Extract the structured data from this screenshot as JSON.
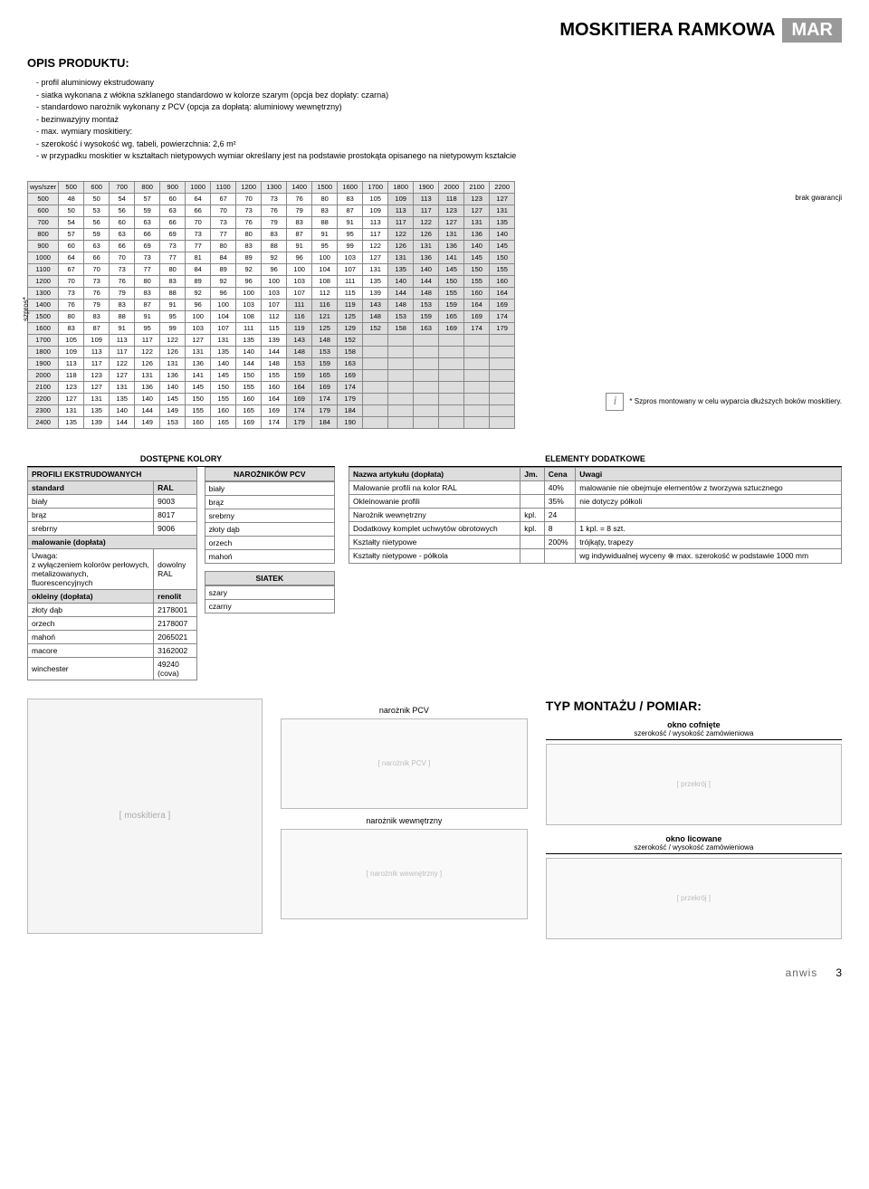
{
  "header": {
    "title": "MOSKITIERA RAMKOWA",
    "badge": "MAR"
  },
  "opis": {
    "title": "OPIS PRODUKTU:",
    "lines": [
      "- profil aluminiowy ekstrudowany",
      "- siatka wykonana z włókna szklanego standardowo w kolorze szarym (opcja bez dopłaty: czarna)",
      "- standardowo narożnik wykonany z PCV (opcja za dopłatą: aluminiowy wewnętrzny)",
      "- bezinwazyjny montaż",
      "- max. wymiary moskitiery:",
      "  - szerokość i wysokość wg. tabeli, powierzchnia: 2,6 m²",
      "- w przypadku moskitier w kształtach nietypowych wymiar określany jest na podstawie prostokąta opisanego na nietypowym kształcie"
    ]
  },
  "price": {
    "row_header": "wys/szer",
    "cols": [
      "500",
      "600",
      "700",
      "800",
      "900",
      "1000",
      "1100",
      "1200",
      "1300",
      "1400",
      "1500",
      "1600",
      "1700",
      "1800",
      "1900",
      "2000",
      "2100",
      "2200"
    ],
    "rows_h": [
      "500",
      "600",
      "700",
      "800",
      "900",
      "1000",
      "1100",
      "1200",
      "1300",
      "1400",
      "1500",
      "1600",
      "1700",
      "1800",
      "1900",
      "2000",
      "2100",
      "2200",
      "2300",
      "2400"
    ],
    "data": [
      [
        48,
        50,
        54,
        57,
        60,
        64,
        67,
        70,
        73,
        76,
        80,
        83,
        105,
        109,
        113,
        118,
        123,
        127
      ],
      [
        50,
        53,
        56,
        59,
        63,
        66,
        70,
        73,
        76,
        79,
        83,
        87,
        109,
        113,
        117,
        123,
        127,
        131
      ],
      [
        54,
        56,
        60,
        63,
        66,
        70,
        73,
        76,
        79,
        83,
        88,
        91,
        113,
        117,
        122,
        127,
        131,
        135
      ],
      [
        57,
        59,
        63,
        66,
        69,
        73,
        77,
        80,
        83,
        87,
        91,
        95,
        117,
        122,
        126,
        131,
        136,
        140
      ],
      [
        60,
        63,
        66,
        69,
        73,
        77,
        80,
        83,
        88,
        91,
        95,
        99,
        122,
        126,
        131,
        136,
        140,
        145
      ],
      [
        64,
        66,
        70,
        73,
        77,
        81,
        84,
        89,
        92,
        96,
        100,
        103,
        127,
        131,
        136,
        141,
        145,
        150
      ],
      [
        67,
        70,
        73,
        77,
        80,
        84,
        89,
        92,
        96,
        100,
        104,
        107,
        131,
        135,
        140,
        145,
        150,
        155
      ],
      [
        70,
        73,
        76,
        80,
        83,
        89,
        92,
        96,
        100,
        103,
        108,
        111,
        135,
        140,
        144,
        150,
        155,
        160
      ],
      [
        73,
        76,
        79,
        83,
        88,
        92,
        96,
        100,
        103,
        107,
        112,
        115,
        139,
        144,
        148,
        155,
        160,
        164
      ],
      [
        76,
        79,
        83,
        87,
        91,
        96,
        100,
        103,
        107,
        111,
        116,
        119,
        143,
        148,
        153,
        159,
        164,
        169
      ],
      [
        80,
        83,
        88,
        91,
        95,
        100,
        104,
        108,
        112,
        116,
        121,
        125,
        148,
        153,
        159,
        165,
        169,
        174
      ],
      [
        83,
        87,
        91,
        95,
        99,
        103,
        107,
        111,
        115,
        119,
        125,
        129,
        152,
        158,
        163,
        169,
        174,
        179
      ],
      [
        105,
        109,
        113,
        117,
        122,
        127,
        131,
        135,
        139,
        143,
        148,
        152,
        "",
        "",
        "",
        "",
        "",
        ""
      ],
      [
        109,
        113,
        117,
        122,
        126,
        131,
        135,
        140,
        144,
        148,
        153,
        158,
        "",
        "",
        "",
        "",
        "",
        ""
      ],
      [
        113,
        117,
        122,
        126,
        131,
        136,
        140,
        144,
        148,
        153,
        159,
        163,
        "",
        "",
        "",
        "",
        "",
        ""
      ],
      [
        118,
        123,
        127,
        131,
        136,
        141,
        145,
        150,
        155,
        159,
        165,
        169,
        "",
        "",
        "",
        "",
        "",
        ""
      ],
      [
        123,
        127,
        131,
        136,
        140,
        145,
        150,
        155,
        160,
        164,
        169,
        174,
        "",
        "",
        "",
        "",
        "",
        ""
      ],
      [
        127,
        131,
        135,
        140,
        145,
        150,
        155,
        160,
        164,
        169,
        174,
        179,
        "",
        "",
        "",
        "",
        "",
        ""
      ],
      [
        131,
        135,
        140,
        144,
        149,
        155,
        160,
        165,
        169,
        174,
        179,
        184,
        "",
        "",
        "",
        "",
        "",
        ""
      ],
      [
        135,
        139,
        144,
        149,
        153,
        160,
        165,
        169,
        174,
        179,
        184,
        190,
        "",
        "",
        "",
        "",
        "",
        ""
      ]
    ],
    "szpros": "szpros*",
    "brak": "brak gwarancji",
    "footnote": "* Szpros montowany w celu wyparcia dłuższych boków moskitiery."
  },
  "kolory": {
    "title": "DOSTĘPNE KOLORY",
    "profili_hdr": "PROFILI EKSTRUDOWANYCH",
    "std_hdr": "standard",
    "ral_hdr": "RAL",
    "std": [
      [
        "biały",
        "9003"
      ],
      [
        "brąz",
        "8017"
      ],
      [
        "srebrny",
        "9006"
      ]
    ],
    "mal_hdr": "malowanie (dopłata)",
    "mal_note": "Uwaga:\nz wyłączeniem kolorów perłowych, metalizowanych, fluorescencyjnych",
    "mal_val": "dowolny RAL",
    "okl_hdr": "okleiny (dopłata)",
    "ren_hdr": "renolit",
    "okl": [
      [
        "złoty dąb",
        "2178001"
      ],
      [
        "orzech",
        "2178007"
      ],
      [
        "mahoń",
        "2065021"
      ],
      [
        "macore",
        "3162002"
      ],
      [
        "winchester",
        "49240 (cova)"
      ]
    ],
    "nar_hdr": "NAROŻNIKÓW PCV",
    "nar": [
      "biały",
      "brąz",
      "srebrny",
      "złoty dąb",
      "orzech",
      "mahoń"
    ],
    "siatek_hdr": "SIATEK",
    "siatek": [
      "szary",
      "czarny"
    ]
  },
  "extras": {
    "title": "ELEMENTY DODATKOWE",
    "headers": [
      "Nazwa artykułu (dopłata)",
      "Jm.",
      "Cena",
      "Uwagi"
    ],
    "rows": [
      [
        "Malowanie profili na kolor RAL",
        "",
        "40%",
        "malowanie nie obejmuje elementów z tworzywa sztucznego"
      ],
      [
        "Okleinowanie profili",
        "",
        "35%",
        "nie dotyczy półkoli"
      ],
      [
        "Narożnik wewnętrzny",
        "kpl.",
        "24",
        ""
      ],
      [
        "Dodatkowy komplet uchwytów obrotowych",
        "kpl.",
        "8",
        "1 kpl. = 8 szt."
      ],
      [
        "Kształty nietypowe",
        "",
        "200%",
        "trójkąty, trapezy"
      ],
      [
        "Kształty nietypowe - półkola",
        "",
        "",
        "wg indywidualnej wyceny ⊕ max. szerokość w podstawie 1000 mm"
      ]
    ]
  },
  "diagrams": {
    "nar_pcv": "narożnik PCV",
    "nar_wew": "narożnik wewnętrzny"
  },
  "mount": {
    "title": "TYP MONTAŻU / POMIAR:",
    "t1": "okno cofnięte",
    "n1": "szerokość / wysokość zamówieniowa",
    "t2": "okno licowane",
    "n2": "szerokość / wysokość zamówieniowa"
  },
  "foot": {
    "logo": "anwis",
    "page": "3"
  }
}
